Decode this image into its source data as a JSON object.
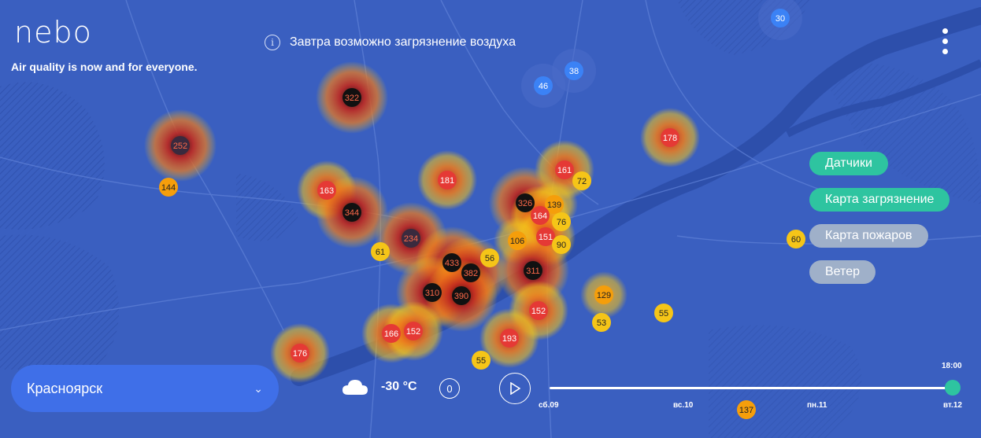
{
  "brand": {
    "logo": "nebo",
    "tagline": "Air quality is now and for everyone."
  },
  "notice": {
    "icon": "info-icon",
    "text": "Завтра возможно загрязнение воздуха"
  },
  "layers": [
    {
      "label": "Датчики",
      "active": true
    },
    {
      "label": "Карта загрязнение",
      "active": true
    },
    {
      "label": "Карта пожаров",
      "active": false
    },
    {
      "label": "Ветер",
      "active": false
    }
  ],
  "city": {
    "name": "Красноярск",
    "icon": "chevron-down-icon"
  },
  "weather": {
    "icon": "cloud-icon",
    "temperature": "-30 °C",
    "wind_speed": "0"
  },
  "timeline": {
    "time": "18:00",
    "labels": [
      "сб.09",
      "вс.10",
      "пн.11",
      "вт.12"
    ],
    "position": 1.0,
    "play_icon": "play-icon"
  },
  "colors": {
    "map_bg": "#3a5fc0",
    "river": "#2d4fab",
    "road": "#5d7fd6",
    "good": "#3b82f6",
    "moderate": "#f5c518",
    "unhealthy_sensitive": "#f59e0b",
    "unhealthy": "#e53935",
    "very_unhealthy": "#111111",
    "accent": "#2ec4a0"
  },
  "sensors": [
    {
      "value": "30",
      "level": "good"
    },
    {
      "value": "38",
      "level": "good"
    },
    {
      "value": "46",
      "level": "good"
    },
    {
      "value": "322",
      "level": "very_unhealthy"
    },
    {
      "value": "252",
      "level": "very_unhealthy"
    },
    {
      "value": "144",
      "level": "unhealthy_sensitive"
    },
    {
      "value": "178",
      "level": "unhealthy"
    },
    {
      "value": "181",
      "level": "unhealthy"
    },
    {
      "value": "163",
      "level": "unhealthy"
    },
    {
      "value": "344",
      "level": "very_unhealthy"
    },
    {
      "value": "161",
      "level": "unhealthy"
    },
    {
      "value": "72",
      "level": "moderate"
    },
    {
      "value": "326",
      "level": "very_unhealthy"
    },
    {
      "value": "139",
      "level": "unhealthy_sensitive"
    },
    {
      "value": "164",
      "level": "unhealthy"
    },
    {
      "value": "76",
      "level": "moderate"
    },
    {
      "value": "151",
      "level": "unhealthy"
    },
    {
      "value": "90",
      "level": "moderate"
    },
    {
      "value": "106",
      "level": "unhealthy_sensitive"
    },
    {
      "value": "234",
      "level": "very_unhealthy"
    },
    {
      "value": "61",
      "level": "moderate"
    },
    {
      "value": "433",
      "level": "very_unhealthy"
    },
    {
      "value": "56",
      "level": "moderate"
    },
    {
      "value": "382",
      "level": "very_unhealthy"
    },
    {
      "value": "311",
      "level": "very_unhealthy"
    },
    {
      "value": "310",
      "level": "very_unhealthy"
    },
    {
      "value": "390",
      "level": "very_unhealthy"
    },
    {
      "value": "60",
      "level": "moderate"
    },
    {
      "value": "129",
      "level": "unhealthy_sensitive"
    },
    {
      "value": "152",
      "level": "unhealthy"
    },
    {
      "value": "53",
      "level": "moderate"
    },
    {
      "value": "55",
      "level": "moderate"
    },
    {
      "value": "166",
      "level": "unhealthy"
    },
    {
      "value": "152",
      "level": "unhealthy"
    },
    {
      "value": "193",
      "level": "unhealthy"
    },
    {
      "value": "176",
      "level": "unhealthy"
    },
    {
      "value": "55",
      "level": "moderate"
    },
    {
      "value": "137",
      "level": "unhealthy_sensitive"
    }
  ]
}
